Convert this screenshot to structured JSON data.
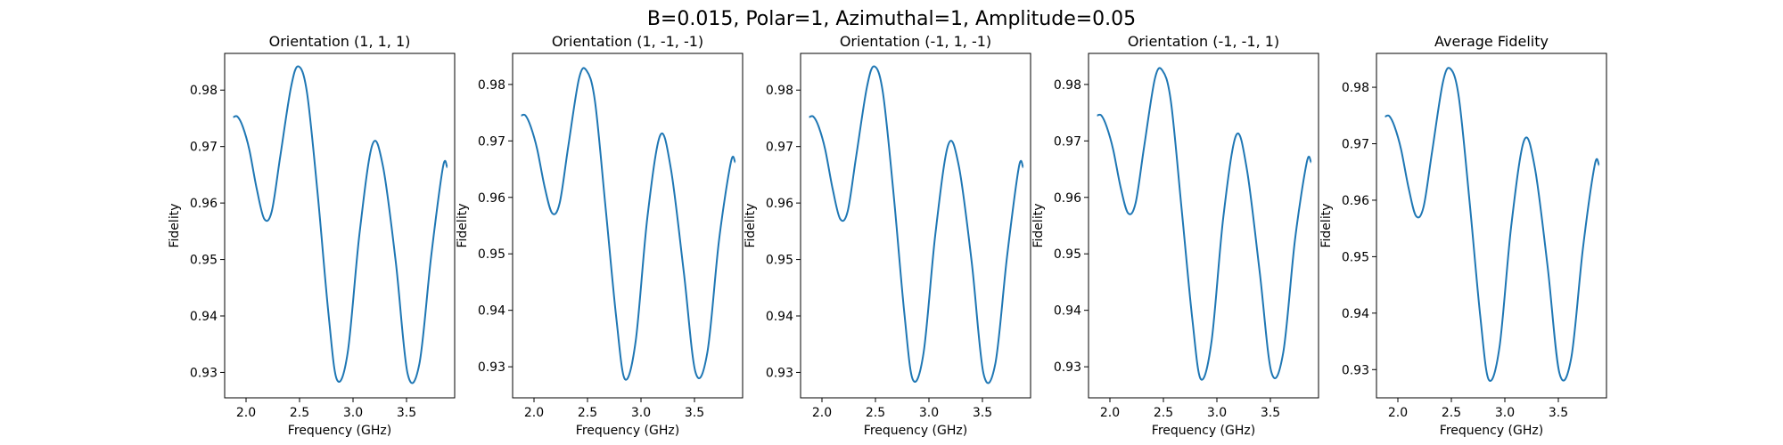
{
  "figure": {
    "suptitle": "B=0.015, Polar=1, Azimuthal=1, Amplitude=0.05"
  },
  "chart_data": [
    {
      "type": "line",
      "title": "Orientation (1, 1, 1)",
      "xlabel": "Frequency (GHz)",
      "ylabel": "Fidelity",
      "xlim": [
        1.8,
        3.95
      ],
      "ylim": [
        0.9255,
        0.9865
      ],
      "xticks": [
        2.0,
        2.5,
        3.0,
        3.5
      ],
      "yticks": [
        0.93,
        0.94,
        0.95,
        0.96,
        0.97,
        0.98
      ],
      "grid": false,
      "color": "#1f77b4",
      "series": [
        {
          "x": [
            1.88,
            1.92,
            1.97,
            2.03,
            2.1,
            2.17,
            2.24,
            2.32,
            2.42,
            2.49,
            2.57,
            2.67,
            2.77,
            2.85,
            2.95,
            3.06,
            3.18,
            3.28,
            3.4,
            3.51,
            3.62,
            3.73,
            3.84,
            3.88
          ],
          "y": [
            0.9752,
            0.9753,
            0.9735,
            0.9695,
            0.9625,
            0.9572,
            0.9585,
            0.9683,
            0.9805,
            0.9842,
            0.9795,
            0.9615,
            0.9405,
            0.9287,
            0.9335,
            0.9545,
            0.9703,
            0.9665,
            0.9495,
            0.9298,
            0.9315,
            0.9505,
            0.9663,
            0.9663
          ]
        }
      ]
    },
    {
      "type": "line",
      "title": "Orientation (1, -1, -1)",
      "xlabel": "Frequency (GHz)",
      "ylabel": "Fidelity",
      "xlim": [
        1.8,
        3.95
      ],
      "ylim": [
        0.9245,
        0.9855
      ],
      "xticks": [
        2.0,
        2.5,
        3.0,
        3.5
      ],
      "yticks": [
        0.93,
        0.94,
        0.95,
        0.96,
        0.97,
        0.98
      ],
      "grid": false,
      "color": "#1f77b4",
      "series": [
        {
          "x": [
            1.88,
            1.92,
            1.97,
            2.03,
            2.1,
            2.17,
            2.24,
            2.32,
            2.42,
            2.49,
            2.57,
            2.67,
            2.77,
            2.85,
            2.95,
            3.06,
            3.18,
            3.28,
            3.4,
            3.51,
            3.62,
            3.73,
            3.84,
            3.88
          ],
          "y": [
            0.9745,
            0.9745,
            0.9725,
            0.9685,
            0.9618,
            0.9572,
            0.959,
            0.969,
            0.981,
            0.9825,
            0.977,
            0.958,
            0.9385,
            0.9278,
            0.9345,
            0.9565,
            0.971,
            0.965,
            0.9468,
            0.929,
            0.9325,
            0.9525,
            0.9662,
            0.9662
          ]
        }
      ]
    },
    {
      "type": "line",
      "title": "Orientation (-1, 1, -1)",
      "xlabel": "Frequency (GHz)",
      "ylabel": "Fidelity",
      "xlim": [
        1.8,
        3.95
      ],
      "ylim": [
        0.9255,
        0.9865
      ],
      "xticks": [
        2.0,
        2.5,
        3.0,
        3.5
      ],
      "yticks": [
        0.93,
        0.94,
        0.95,
        0.96,
        0.97,
        0.98
      ],
      "grid": false,
      "color": "#1f77b4",
      "series": [
        {
          "x": [
            1.88,
            1.92,
            1.97,
            2.03,
            2.1,
            2.17,
            2.24,
            2.32,
            2.42,
            2.49,
            2.57,
            2.67,
            2.77,
            2.85,
            2.95,
            3.06,
            3.18,
            3.28,
            3.4,
            3.51,
            3.62,
            3.73,
            3.84,
            3.88
          ],
          "y": [
            0.9752,
            0.9753,
            0.9735,
            0.9695,
            0.9625,
            0.9572,
            0.9585,
            0.9683,
            0.9805,
            0.9842,
            0.9795,
            0.9615,
            0.9405,
            0.9287,
            0.9335,
            0.9545,
            0.9703,
            0.9665,
            0.9495,
            0.9298,
            0.9315,
            0.9505,
            0.9663,
            0.9663
          ]
        }
      ]
    },
    {
      "type": "line",
      "title": "Orientation (-1, -1, 1)",
      "xlabel": "Frequency (GHz)",
      "ylabel": "Fidelity",
      "xlim": [
        1.8,
        3.95
      ],
      "ylim": [
        0.9245,
        0.9855
      ],
      "xticks": [
        2.0,
        2.5,
        3.0,
        3.5
      ],
      "yticks": [
        0.93,
        0.94,
        0.95,
        0.96,
        0.97,
        0.98
      ],
      "grid": false,
      "color": "#1f77b4",
      "series": [
        {
          "x": [
            1.88,
            1.92,
            1.97,
            2.03,
            2.1,
            2.17,
            2.24,
            2.32,
            2.42,
            2.49,
            2.57,
            2.67,
            2.77,
            2.85,
            2.95,
            3.06,
            3.18,
            3.28,
            3.4,
            3.51,
            3.62,
            3.73,
            3.84,
            3.88
          ],
          "y": [
            0.9745,
            0.9745,
            0.9725,
            0.9685,
            0.9618,
            0.9572,
            0.959,
            0.969,
            0.981,
            0.9825,
            0.977,
            0.958,
            0.9385,
            0.9278,
            0.9345,
            0.9565,
            0.971,
            0.965,
            0.9468,
            0.929,
            0.9325,
            0.9525,
            0.9662,
            0.9662
          ]
        }
      ]
    },
    {
      "type": "line",
      "title": "Average Fidelity",
      "xlabel": "Frequency (GHz)",
      "ylabel": "Fidelity",
      "xlim": [
        1.8,
        3.95
      ],
      "ylim": [
        0.925,
        0.986
      ],
      "xticks": [
        2.0,
        2.5,
        3.0,
        3.5
      ],
      "yticks": [
        0.93,
        0.94,
        0.95,
        0.96,
        0.97,
        0.98
      ],
      "grid": false,
      "color": "#1f77b4",
      "series": [
        {
          "x": [
            1.88,
            1.92,
            1.97,
            2.03,
            2.1,
            2.17,
            2.24,
            2.32,
            2.42,
            2.49,
            2.57,
            2.67,
            2.77,
            2.85,
            2.95,
            3.06,
            3.18,
            3.28,
            3.4,
            3.51,
            3.62,
            3.73,
            3.84,
            3.88
          ],
          "y": [
            0.9748,
            0.9749,
            0.973,
            0.969,
            0.9622,
            0.9572,
            0.9588,
            0.9686,
            0.9808,
            0.9833,
            0.9782,
            0.9598,
            0.9395,
            0.9282,
            0.934,
            0.9555,
            0.9706,
            0.9658,
            0.9482,
            0.9294,
            0.932,
            0.9515,
            0.9662,
            0.9662
          ]
        }
      ]
    }
  ]
}
